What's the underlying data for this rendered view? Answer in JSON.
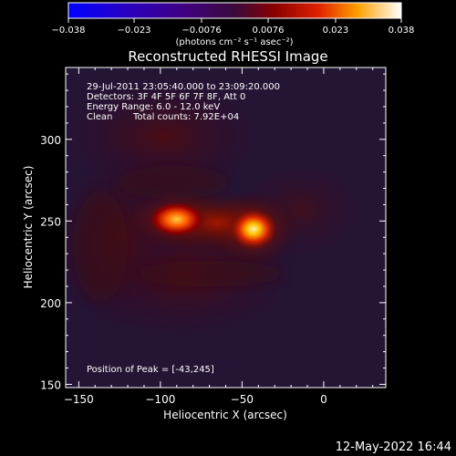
{
  "chart_data": {
    "type": "heatmap",
    "title": "Reconstructed RHESSI Image",
    "xlabel": "Heliocentric X (arcsec)",
    "ylabel": "Heliocentric Y (arcsec)",
    "xlim": [
      -158,
      38
    ],
    "ylim": [
      148,
      344
    ],
    "x_ticks": [
      -150,
      -100,
      -50,
      0
    ],
    "x_tick_labels": [
      "−150",
      "−100",
      "−50",
      "0"
    ],
    "y_ticks": [
      150,
      200,
      250,
      300
    ],
    "y_tick_labels": [
      "150",
      "200",
      "250",
      "300"
    ],
    "colorbar": {
      "min": -0.038,
      "max": 0.038,
      "ticks": [
        -0.038,
        -0.023,
        -0.0076,
        0.0076,
        0.023,
        0.038
      ],
      "tick_labels": [
        "−0.038",
        "−0.023",
        "−0.0076",
        "0.0076",
        "0.023",
        "0.038"
      ],
      "units": "(photons cm⁻² s⁻¹ asec⁻²)"
    },
    "info": {
      "time_range": "29-Jul-2011 23:05:40.000 to 23:09:20.000",
      "detectors": "Detectors: 3F 4F 5F 6F 7F 8F, Att 0",
      "energy": "Energy Range: 6.0 - 12.0 keV",
      "method": "Clean",
      "counts": "Total counts: 7.92E+04"
    },
    "peak_label": "Position of Peak = [-43,245]",
    "sources": [
      {
        "x": -43,
        "y": 245,
        "intensity": 0.038,
        "sx": 7,
        "sy": 6
      },
      {
        "x": -90,
        "y": 251,
        "intensity": 0.03,
        "sx": 8,
        "sy": 5
      },
      {
        "x": -65,
        "y": 249,
        "intensity": 0.02,
        "sx": 9,
        "sy": 5
      }
    ],
    "date_stamp": "12-May-2022 16:44"
  }
}
